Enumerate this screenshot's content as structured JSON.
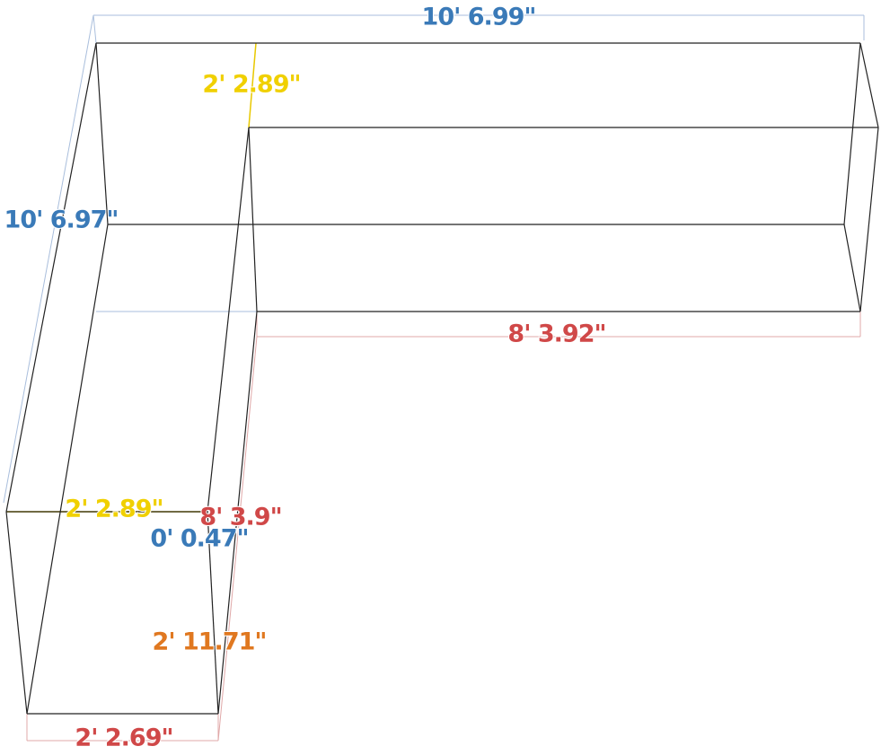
{
  "dimensions": [
    {
      "label": "10' 6.99\"",
      "color": "#3a7ab8"
    },
    {
      "label": "2' 2.89\"",
      "color": "#f0d000"
    },
    {
      "label": "10' 6.97\"",
      "color": "#3a7ab8"
    },
    {
      "label": "8' 3.92\"",
      "color": "#d04848"
    },
    {
      "label": "2' 2.89\"",
      "color": "#f0d000"
    },
    {
      "label": "8' 3.9\"",
      "color": "#d04848"
    },
    {
      "label": "0' 0.47\"",
      "color": "#3a7ab8"
    },
    {
      "label": "2' 11.71\"",
      "color": "#e07820"
    },
    {
      "label": "2' 2.69\"",
      "color": "#d04848"
    }
  ]
}
